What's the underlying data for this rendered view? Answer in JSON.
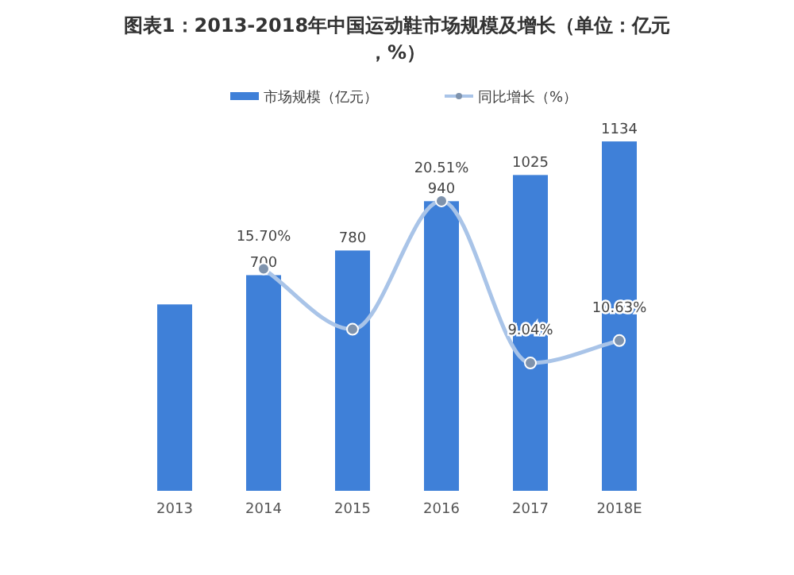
{
  "chart_data": {
    "type": "bar",
    "title": "图表1：2013-2018年中国运动鞋市场规模及增长（单位：亿元，%）",
    "categories": [
      "2013",
      "2014",
      "2015",
      "2016",
      "2017",
      "2018E"
    ],
    "series": [
      {
        "name": "市场规模（亿元）",
        "color": "#3f80d8",
        "values": [
          605,
          700,
          780,
          940,
          1025,
          1134
        ],
        "value_labels": [
          null,
          "700",
          "780",
          "940",
          "1025",
          "1134"
        ]
      },
      {
        "name": "同比增长（%）",
        "type": "line",
        "axis": "y2",
        "color": "#a9c4e8",
        "marker": "circle",
        "values": [
          null,
          15.7,
          11.43,
          20.51,
          9.04,
          10.63
        ],
        "value_labels": [
          null,
          "15.70%",
          null,
          "20.51%",
          "9.04%",
          "10.63%"
        ]
      }
    ],
    "tick_labels": "x",
    "legend": "top",
    "grid": false
  }
}
